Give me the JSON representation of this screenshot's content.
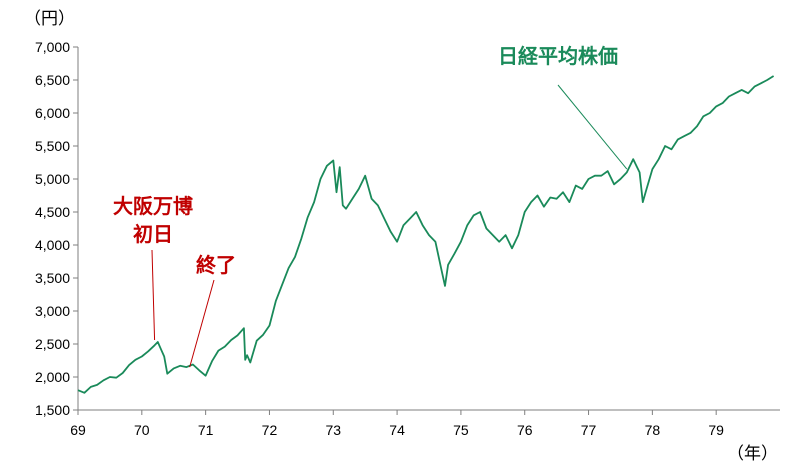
{
  "chart_data": {
    "type": "line",
    "title": "",
    "y_unit": "（円）",
    "x_unit": "（年）",
    "ylim": [
      1500,
      7000
    ],
    "xlim": [
      69,
      80
    ],
    "yticks": [
      1500,
      2000,
      2500,
      3000,
      3500,
      4000,
      4500,
      5000,
      5500,
      6000,
      6500,
      7000
    ],
    "ytick_labels": [
      "1,500",
      "2,000",
      "2,500",
      "3,000",
      "3,500",
      "4,000",
      "4,500",
      "5,000",
      "5,500",
      "6,000",
      "6,500",
      "7,000"
    ],
    "xticks": [
      69,
      70,
      71,
      72,
      73,
      74,
      75,
      76,
      77,
      78,
      79
    ],
    "xtick_labels": [
      "69",
      "70",
      "71",
      "72",
      "73",
      "74",
      "75",
      "76",
      "77",
      "78",
      "79"
    ],
    "grid": false,
    "series": [
      {
        "name": "日経平均株価",
        "color": "#1a8a5a",
        "x": [
          69.0,
          69.1,
          69.2,
          69.3,
          69.4,
          69.5,
          69.6,
          69.7,
          69.8,
          69.9,
          70.0,
          70.1,
          70.2,
          70.25,
          70.3,
          70.35,
          70.4,
          70.5,
          70.6,
          70.7,
          70.8,
          70.9,
          71.0,
          71.1,
          71.2,
          71.3,
          71.4,
          71.5,
          71.6,
          71.62,
          71.65,
          71.7,
          71.8,
          71.9,
          72.0,
          72.1,
          72.2,
          72.3,
          72.4,
          72.5,
          72.6,
          72.7,
          72.8,
          72.9,
          73.0,
          73.05,
          73.1,
          73.15,
          73.2,
          73.3,
          73.4,
          73.5,
          73.6,
          73.7,
          73.8,
          73.9,
          74.0,
          74.1,
          74.2,
          74.3,
          74.4,
          74.5,
          74.6,
          74.7,
          74.75,
          74.8,
          74.9,
          75.0,
          75.1,
          75.2,
          75.3,
          75.4,
          75.5,
          75.6,
          75.7,
          75.8,
          75.9,
          76.0,
          76.1,
          76.2,
          76.3,
          76.4,
          76.5,
          76.6,
          76.7,
          76.8,
          76.9,
          77.0,
          77.1,
          77.2,
          77.3,
          77.4,
          77.5,
          77.6,
          77.7,
          77.8,
          77.85,
          77.9,
          78.0,
          78.1,
          78.2,
          78.3,
          78.4,
          78.5,
          78.6,
          78.7,
          78.8,
          78.9,
          79.0,
          79.1,
          79.2,
          79.3,
          79.4,
          79.5,
          79.6,
          79.7,
          79.8,
          79.9
        ],
        "values": [
          1800,
          1760,
          1850,
          1880,
          1950,
          2000,
          1990,
          2060,
          2180,
          2260,
          2310,
          2390,
          2480,
          2530,
          2420,
          2310,
          2050,
          2130,
          2170,
          2150,
          2190,
          2100,
          2020,
          2240,
          2400,
          2460,
          2560,
          2630,
          2740,
          2260,
          2330,
          2220,
          2550,
          2640,
          2780,
          3150,
          3400,
          3650,
          3820,
          4100,
          4420,
          4650,
          5000,
          5200,
          5280,
          4800,
          5180,
          4600,
          4550,
          4700,
          4850,
          5050,
          4700,
          4600,
          4400,
          4200,
          4050,
          4300,
          4400,
          4500,
          4300,
          4150,
          4050,
          3600,
          3380,
          3700,
          3870,
          4050,
          4300,
          4450,
          4500,
          4250,
          4150,
          4050,
          4150,
          3950,
          4150,
          4500,
          4650,
          4750,
          4580,
          4720,
          4700,
          4800,
          4650,
          4900,
          4850,
          5000,
          5050,
          5050,
          5120,
          4920,
          5000,
          5100,
          5300,
          5100,
          4650,
          4820,
          5150,
          5300,
          5500,
          5450,
          5600,
          5650,
          5700,
          5800,
          5950,
          6000,
          6100,
          6150,
          6250,
          6300,
          6350,
          6300,
          6400,
          6450,
          6500,
          6560
        ]
      }
    ],
    "annotations": [
      {
        "lines": [
          "大阪万博",
          "初日"
        ],
        "color": "#c00000",
        "point_x": 70.2,
        "point_y": 2560
      },
      {
        "lines": [
          "終了"
        ],
        "color": "#c00000",
        "point_x": 70.75,
        "point_y": 2150
      },
      {
        "lines": [
          "日経平均株価"
        ],
        "color": "#1a8a5a",
        "point_x": 77.6,
        "point_y": 5150
      }
    ]
  }
}
